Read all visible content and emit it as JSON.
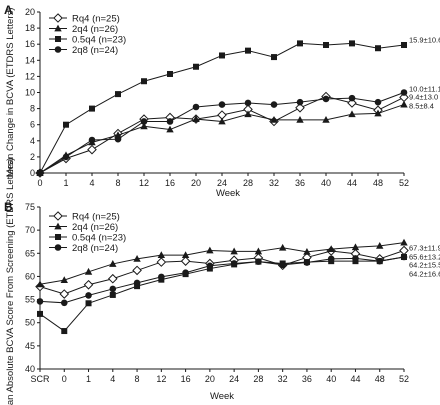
{
  "chart_data": [
    {
      "type": "line",
      "panel_label": "A",
      "xlabel": "Week",
      "ylabel": "Mean Change in BCVA (ETDRS Letters)",
      "x_ticks": [
        "0",
        "1",
        "4",
        "8",
        "12",
        "16",
        "20",
        "24",
        "28",
        "32",
        "36",
        "40",
        "44",
        "48",
        "52"
      ],
      "y_ticks": [
        "0",
        "2",
        "4",
        "6",
        "8",
        "10",
        "12",
        "14",
        "16",
        "18",
        "20"
      ],
      "ylim": [
        0,
        20
      ],
      "series": [
        {
          "name": "Rq4 (n=25)",
          "marker": "diamond-open",
          "values": [
            0,
            1.8,
            2.9,
            4.9,
            6.7,
            6.9,
            6.7,
            7.2,
            7.9,
            6.4,
            8.1,
            9.5,
            8.7,
            7.8,
            9.4
          ],
          "end_label": "9.4±13.0"
        },
        {
          "name": "2q4 (n=26)",
          "marker": "triangle",
          "values": [
            0,
            2.2,
            3.8,
            4.7,
            5.8,
            5.4,
            6.7,
            6.4,
            7.3,
            6.6,
            6.6,
            6.6,
            7.3,
            7.4,
            8.5
          ],
          "end_label": "8.5±8.4"
        },
        {
          "name": "0.5q4 (n=23)",
          "marker": "square",
          "values": [
            0,
            6.0,
            8.0,
            9.8,
            11.4,
            12.3,
            13.2,
            14.6,
            15.2,
            14.4,
            16.1,
            15.9,
            16.1,
            15.5,
            15.9
          ],
          "end_label": "15.9±10.6"
        },
        {
          "name": "2q8 (n=24)",
          "marker": "circle",
          "values": [
            0,
            2.0,
            4.1,
            4.2,
            6.4,
            6.4,
            8.2,
            8.5,
            8.7,
            8.5,
            8.8,
            9.2,
            9.3,
            8.8,
            10.0
          ],
          "end_label": "10.0±11.1"
        }
      ]
    },
    {
      "type": "line",
      "panel_label": "B",
      "xlabel": "Week",
      "ylabel": "Mean Absolute BCVA Score From Screening (ETDRS Letters)",
      "x_ticks": [
        "SCR",
        "0",
        "1",
        "4",
        "8",
        "12",
        "16",
        "20",
        "24",
        "28",
        "32",
        "36",
        "40",
        "44",
        "48",
        "52"
      ],
      "y_ticks": [
        "40",
        "45",
        "50",
        "55",
        "60",
        "65",
        "70",
        "75"
      ],
      "ylim": [
        40,
        75
      ],
      "series": [
        {
          "name": "Rq4 (n=25)",
          "marker": "diamond-open",
          "values": [
            57.8,
            56.2,
            58.2,
            59.5,
            61.3,
            63.1,
            63.3,
            62.8,
            63.5,
            64.0,
            62.4,
            64.1,
            65.5,
            64.9,
            63.8,
            65.6
          ],
          "end_label": "65.6±13.2"
        },
        {
          "name": "2q4 (n=26)",
          "marker": "triangle",
          "values": [
            58.3,
            59.2,
            61.0,
            62.7,
            63.8,
            64.6,
            64.6,
            65.6,
            65.4,
            65.4,
            66.2,
            65.3,
            65.9,
            66.3,
            66.6,
            67.3
          ],
          "end_label": "67.3±11.9"
        },
        {
          "name": "0.5q4 (n=23)",
          "marker": "square",
          "values": [
            51.9,
            48.2,
            54.2,
            56.0,
            57.9,
            59.3,
            60.5,
            61.7,
            62.6,
            63.2,
            62.8,
            63.1,
            63.3,
            63.3,
            63.3,
            64.2
          ],
          "end_label": "64.2±15.5"
        },
        {
          "name": "2q8 (n=24)",
          "marker": "circle",
          "values": [
            54.6,
            54.3,
            55.9,
            57.3,
            58.6,
            59.9,
            60.8,
            62.3,
            62.8,
            63.2,
            62.5,
            63.0,
            63.8,
            63.9,
            63.3,
            64.2
          ],
          "end_label": "64.2±16.6"
        }
      ]
    }
  ]
}
